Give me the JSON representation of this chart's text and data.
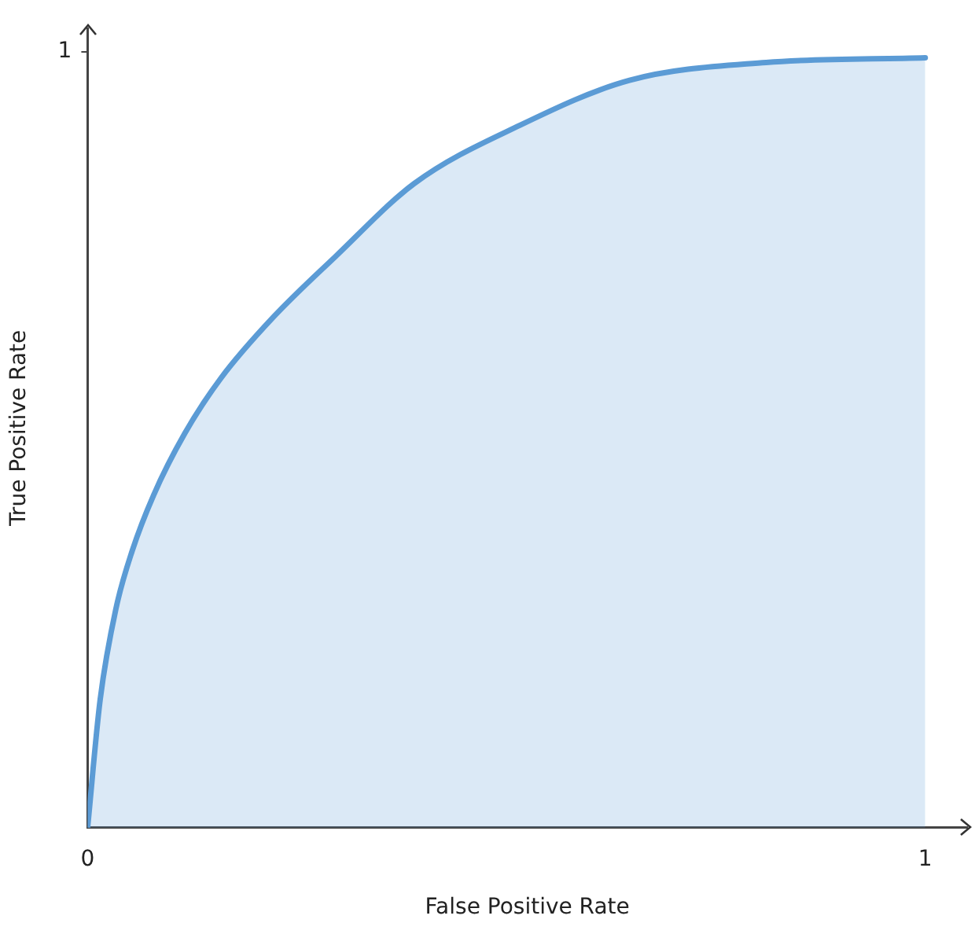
{
  "chart_data": {
    "type": "area",
    "xlabel": "False Positive Rate",
    "ylabel": "True Positive Rate",
    "x": [
      0,
      0.015,
      0.034,
      0.053,
      0.079,
      0.116,
      0.159,
      0.221,
      0.296,
      0.39,
      0.516,
      0.647,
      0.81,
      1
    ],
    "series": [
      {
        "color": "#5b9bd5",
        "values": [
          0,
          0.165,
          0.283,
          0.356,
          0.429,
          0.508,
          0.579,
          0.657,
          0.736,
          0.83,
          0.905,
          0.963,
          0.986,
          0.992
        ]
      }
    ],
    "xlim": [
      0,
      1.05
    ],
    "ylim": [
      0,
      1.03
    ],
    "xticks": [
      0,
      1
    ],
    "yticks": [
      1
    ],
    "grid": false,
    "legend": false,
    "marker": "none",
    "line_style": "solid"
  }
}
